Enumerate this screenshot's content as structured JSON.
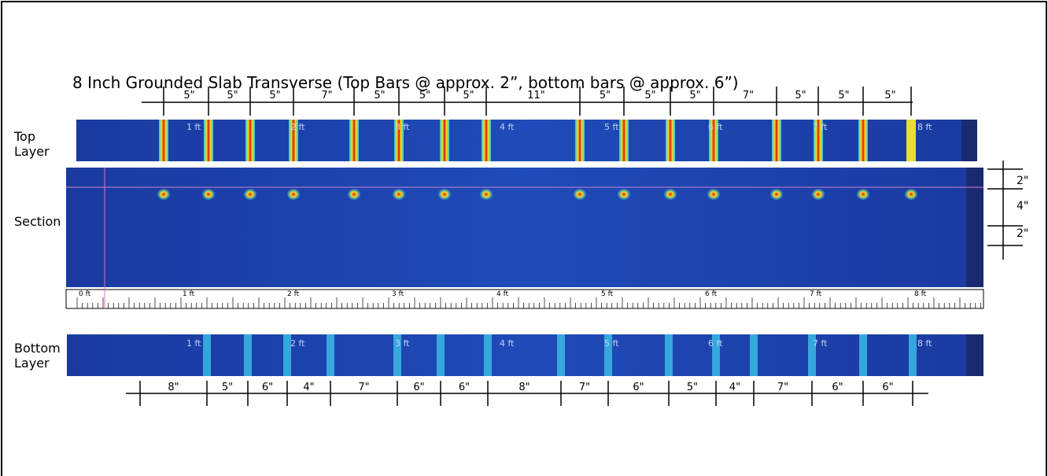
{
  "title": "8 Inch Grounded Slab Transverse (Top Bars @ approx. 2”, bottom bars @ approx. 6”)",
  "layers": {
    "top": "Top Layer",
    "section": "Section",
    "bottom": "Bottom Layer"
  },
  "top_spacings": [
    "5\"",
    "5\"",
    "5\"",
    "7\"",
    "5\"",
    "5\"",
    "5\"",
    "11\"",
    "5\"",
    "5\"",
    "5\"",
    "7\"",
    "5\"",
    "5\"",
    "5\""
  ],
  "bottom_spacings": [
    "8\"",
    "5\"",
    "6\"",
    "4\"",
    "7\"",
    "6\"",
    "6\"",
    "8\"",
    "7\"",
    "6\"",
    "5\"",
    "4\"",
    "7\"",
    "6\"",
    "6\""
  ],
  "depth_spacings": [
    "2\"",
    "4\"",
    "2\""
  ],
  "scan_labels": [
    "1 ft",
    "2 ft",
    "3 ft",
    "4 ft",
    "5 ft",
    "6 ft",
    "7 ft",
    "8 ft"
  ],
  "ruler_labels": [
    "0 ft",
    "1 ft",
    "2 ft",
    "3 ft",
    "4 ft",
    "5 ft",
    "6 ft",
    "7 ft",
    "8 ft"
  ]
}
